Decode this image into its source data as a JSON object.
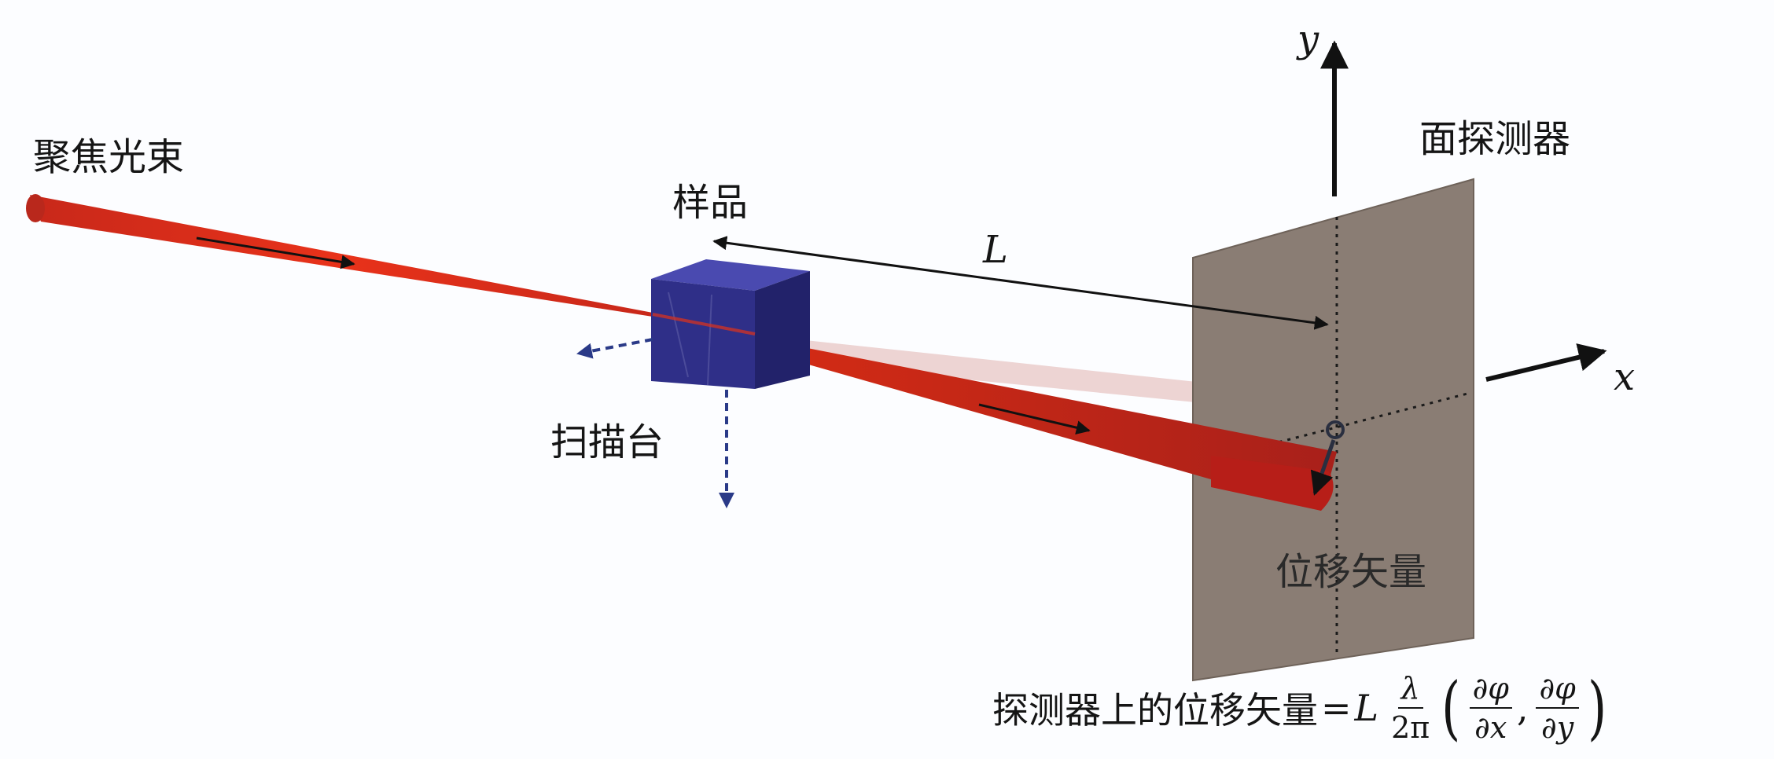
{
  "labels": {
    "focused_beam": "聚焦光束",
    "sample": "样品",
    "scan_stage": "扫描台",
    "area_detector": "面探测器",
    "displacement_vector": "位移矢量",
    "distance": "L",
    "y_axis": "y",
    "x_axis": "x"
  },
  "formula": {
    "prefix": "探测器上的位移矢量",
    "equals": "=",
    "L": "L",
    "lambda": "λ",
    "two_pi": "2π",
    "d_phi": "∂φ",
    "d_x": "∂x",
    "d_y": "∂y",
    "open": "(",
    "comma": ",",
    "close": ")"
  },
  "colors": {
    "beam": "#e02a12",
    "sample": "#2b2a86",
    "detector": "#8a7d74",
    "background": "#fcfdff",
    "arrow": "#111111",
    "stage_arrow": "#2a3a88"
  }
}
